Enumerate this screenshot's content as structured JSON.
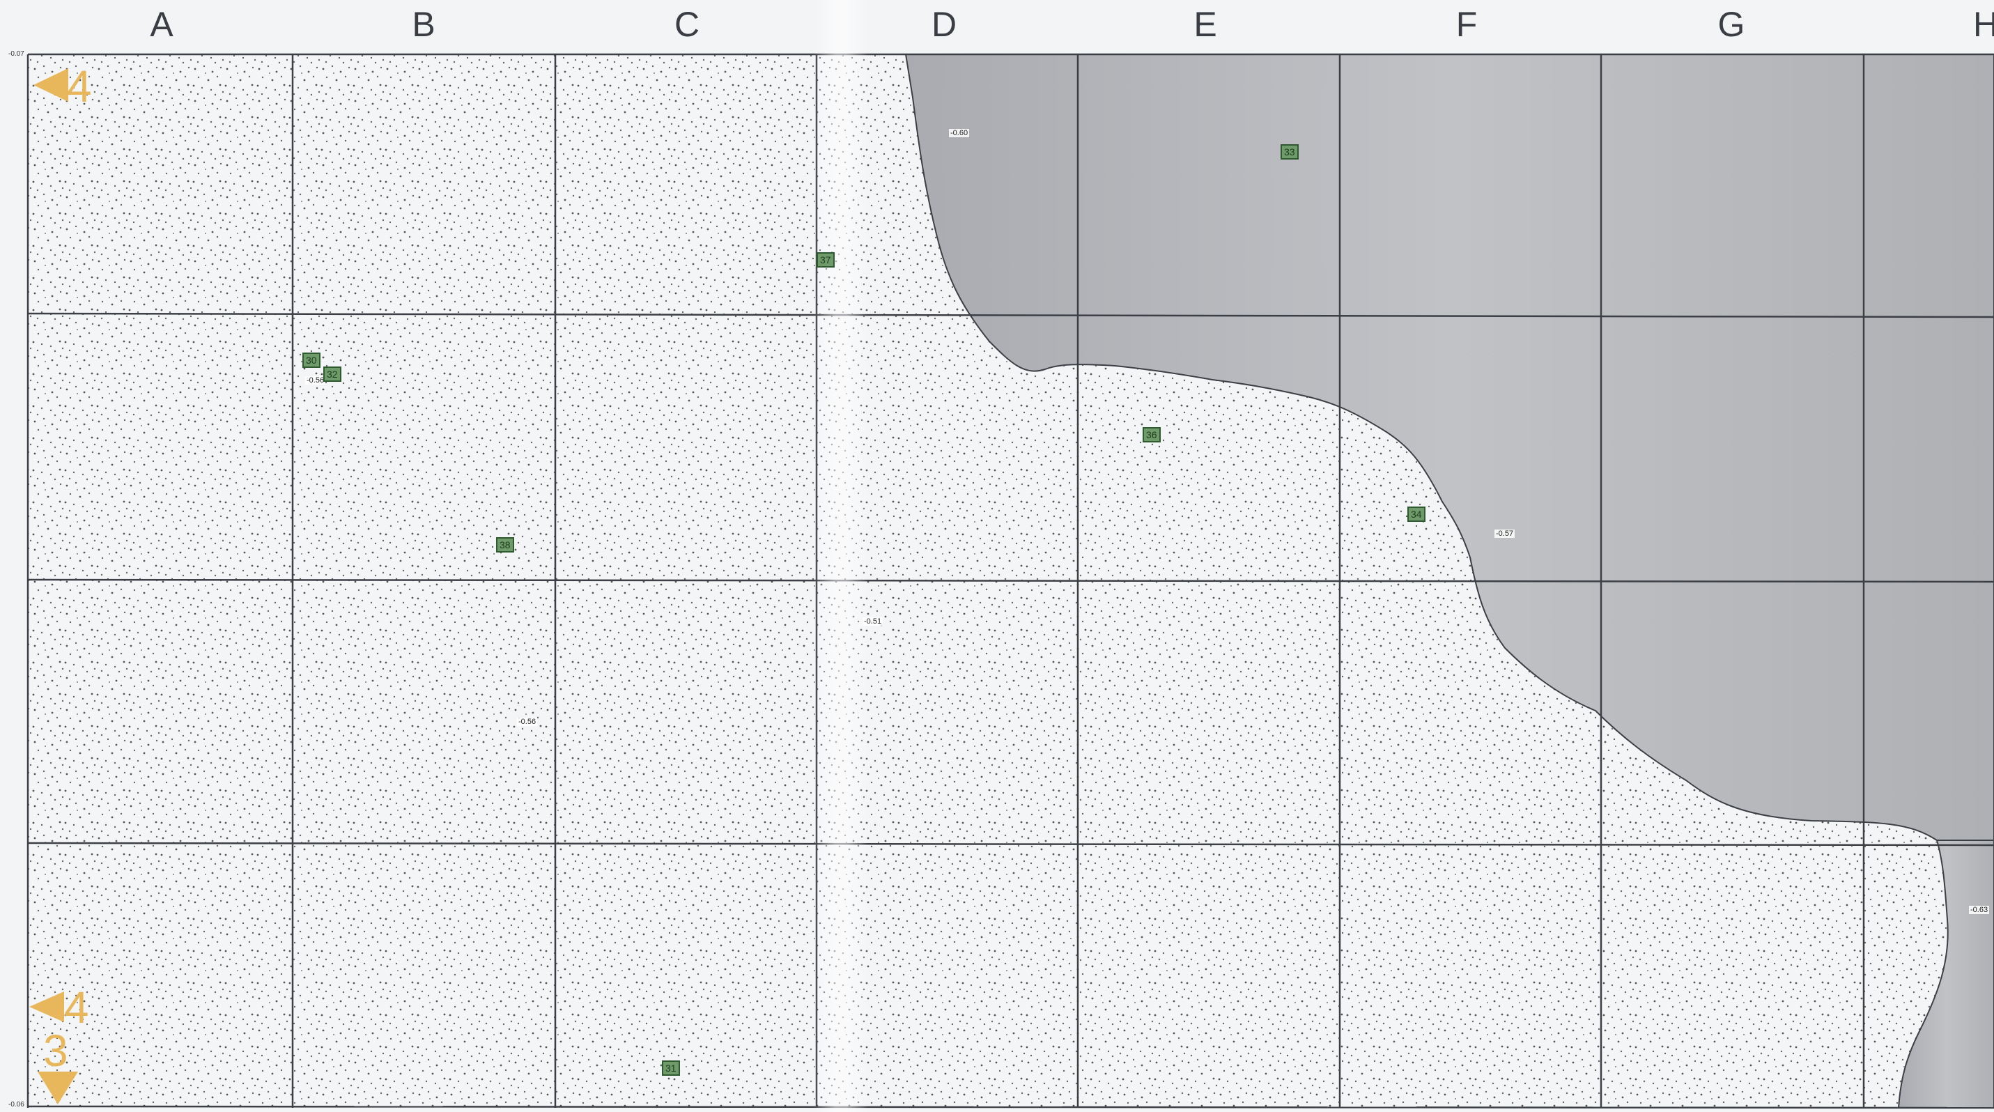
{
  "columns": [
    "A",
    "B",
    "C",
    "D",
    "E",
    "F",
    "G",
    "H"
  ],
  "corner_top_left": "-0.07",
  "corner_bottom_left": "-0.06",
  "elevations": [
    "-0.60",
    "-0.56",
    "-0.51",
    "-0.56",
    "-0.57",
    "-0.63"
  ],
  "cell_tags": [
    "33",
    "37",
    "30",
    "32",
    "36",
    "38",
    "34",
    "31"
  ],
  "markers": [
    "4",
    "4",
    "3"
  ],
  "colors": {
    "paper": "#f4f5f7",
    "grid": "#3c3f45",
    "shaded": "#b6b8bc",
    "tag_fill": "#6f9a6a",
    "marker": "#e8b75b"
  }
}
